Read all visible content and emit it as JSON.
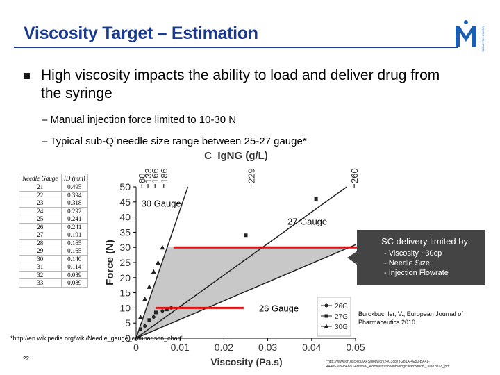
{
  "slide": {
    "title": "Viscosity Target – Estimation",
    "bullet": "High viscosity impacts the ability to load and deliver drug from the syringe",
    "sub1": "– Manual injection force limited to 10-30 N",
    "sub2": "– Typical sub-Q needle size range between 25-27 gauge*",
    "footnote_left": "*http://en.wikipedia.org/wiki/Needle_gauge_comparison_chart\"",
    "page_number": "22",
    "footnote_right": "*http://www.ich.usc.edu/AFS/body/on/24C38873-281A-4E50-BA41-4440530598488/Section/V_Administrationof/Biological/Products_June2012_.pdf"
  },
  "logo": {
    "letter": "M",
    "text": "MERCK MILLIPORE",
    "color": "#1a5fb4"
  },
  "needle_table": {
    "headers": [
      "Needle Gauge",
      "ID (mm)"
    ],
    "rows": [
      [
        "21",
        "0.495"
      ],
      [
        "22",
        "0.394"
      ],
      [
        "23",
        "0.318"
      ],
      [
        "24",
        "0.292"
      ],
      [
        "25",
        "0.241"
      ],
      [
        "26",
        "0.241"
      ],
      [
        "27",
        "0.191"
      ],
      [
        "28",
        "0.165"
      ],
      [
        "29",
        "0.165"
      ],
      [
        "30",
        "0.140"
      ],
      [
        "31",
        "0.114"
      ],
      [
        "32",
        "0.089"
      ],
      [
        "33",
        "0.089"
      ]
    ]
  },
  "chart_data": {
    "type": "line",
    "title": "C_IgNG (g/L)",
    "xlabel": "Viscosity (Pa.s)",
    "ylabel": "Force (N)",
    "xlim": [
      0,
      0.05
    ],
    "ylim": [
      0,
      50
    ],
    "x_ticks": [
      "0",
      "0.01",
      "0.02",
      "0.03",
      "0.04",
      "0.05"
    ],
    "y_ticks": [
      "0",
      "5",
      "10",
      "15",
      "20",
      "25",
      "30",
      "35",
      "40",
      "45",
      "50"
    ],
    "top_axis": {
      "ticks": [
        {
          "label": "80",
          "x": 0.0013
        },
        {
          "label": "133",
          "x": 0.0027
        },
        {
          "label": "166",
          "x": 0.0043
        },
        {
          "label": "186",
          "x": 0.0063
        },
        {
          "label": "229",
          "x": 0.0262
        },
        {
          "label": "260",
          "x": 0.0497
        }
      ]
    },
    "series": [
      {
        "name": "26G",
        "marker": "circle",
        "x": [
          0,
          0.051
        ],
        "y": [
          0,
          31.5
        ]
      },
      {
        "name": "27G",
        "marker": "square",
        "x": [
          0,
          0.048
        ],
        "y": [
          0,
          50
        ]
      },
      {
        "name": "30G",
        "marker": "triangle",
        "x": [
          0,
          0.0118
        ],
        "y": [
          0,
          50
        ]
      }
    ],
    "points": {
      "26G": [
        [
          0.002,
          4
        ],
        [
          0.004,
          7
        ],
        [
          0.006,
          9
        ],
        [
          0.008,
          10
        ]
      ],
      "27G": [
        [
          0.001,
          3
        ],
        [
          0.003,
          6
        ],
        [
          0.0045,
          8.5
        ],
        [
          0.007,
          9.5
        ],
        [
          0.025,
          34
        ],
        [
          0.041,
          46
        ]
      ],
      "30G": [
        [
          0.001,
          7
        ],
        [
          0.002,
          13
        ],
        [
          0.003,
          17
        ],
        [
          0.004,
          22
        ],
        [
          0.005,
          25
        ],
        [
          0.006,
          30
        ]
      ]
    },
    "limit_lines": [
      {
        "y": 30,
        "x": [
          0.0085,
          0.051
        ],
        "color": "#e01010"
      },
      {
        "y": 10,
        "x": [
          0.0045,
          0.0245
        ],
        "color": "#e01010"
      }
    ],
    "shaded_region_color": "#c8c8c8",
    "annotations": [
      {
        "text": "30 Gauge",
        "x": 0.0012,
        "y": 43.5
      },
      {
        "text": "27 Gauge",
        "x": 0.0345,
        "y": 37.5
      },
      {
        "text": "26 Gauge",
        "x": 0.028,
        "y": 8.8
      }
    ],
    "legend": {
      "position": "bottom-right",
      "entries": [
        "26G",
        "27G",
        "30G"
      ]
    },
    "callout": {
      "title": "SC delivery limited by",
      "lines": [
        "- Viscosity ~30cp",
        "- Needle Size",
        "- Injection Flowrate"
      ],
      "bg": "#444444",
      "text_color": "#ffffff"
    },
    "citation": "Burckbuchler, V., European Journal of Pharmaceutics 2010"
  }
}
